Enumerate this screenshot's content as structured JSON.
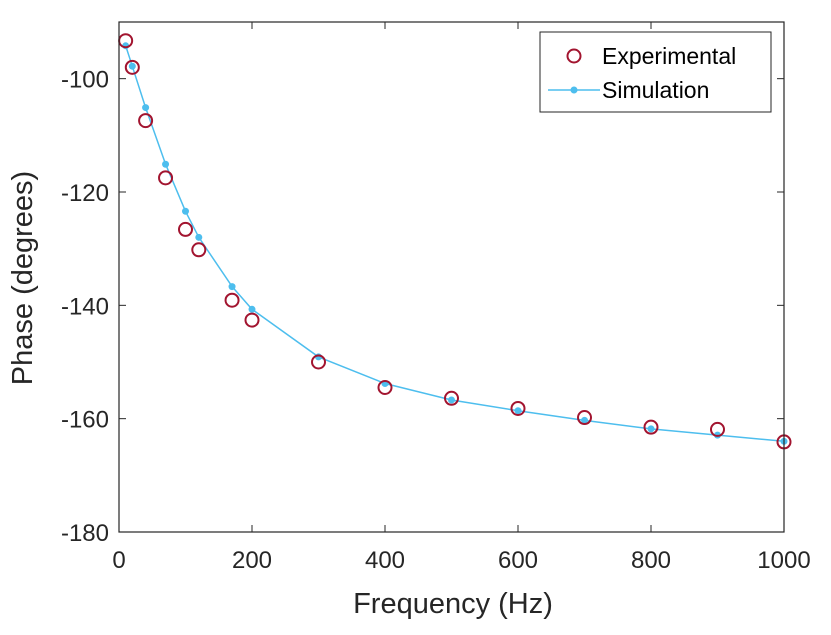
{
  "chart_data": {
    "type": "scatter",
    "title": "",
    "xlabel": "Frequency (Hz)",
    "ylabel": "Phase (degrees)",
    "xlim": [
      0,
      1000
    ],
    "ylim": [
      -180,
      -90
    ],
    "xticks": [
      0,
      200,
      400,
      600,
      800,
      1000
    ],
    "yticks": [
      -180,
      -160,
      -140,
      -120,
      -100
    ],
    "xtick_labels": [
      "0",
      "200",
      "400",
      "600",
      "800",
      "1000"
    ],
    "ytick_labels": [
      "-180",
      "-160",
      "-140",
      "-120",
      "-100"
    ],
    "grid": false,
    "legend_position": "top-right",
    "series": [
      {
        "name": "Experimental",
        "style": "markers-open-circle",
        "color": "#A2142F",
        "x": [
          10,
          20,
          40,
          70,
          100,
          120,
          170,
          200,
          300,
          400,
          500,
          600,
          700,
          800,
          900,
          1000
        ],
        "y": [
          -93.3,
          -98.0,
          -107.4,
          -117.5,
          -126.6,
          -130.2,
          -139.1,
          -142.6,
          -150.0,
          -154.5,
          -156.4,
          -158.2,
          -159.8,
          -161.5,
          -161.9,
          -164.1
        ]
      },
      {
        "name": "Simulation",
        "style": "line-with-dots",
        "color": "#4DBEEE",
        "x": [
          10,
          20,
          40,
          70,
          100,
          120,
          170,
          200,
          300,
          400,
          500,
          600,
          700,
          800,
          900,
          1000
        ],
        "y": [
          -94.2,
          -97.8,
          -105.1,
          -115.1,
          -123.4,
          -128.0,
          -136.7,
          -140.7,
          -149.1,
          -153.8,
          -156.7,
          -158.6,
          -160.3,
          -161.8,
          -162.9,
          -164.0
        ]
      }
    ]
  }
}
